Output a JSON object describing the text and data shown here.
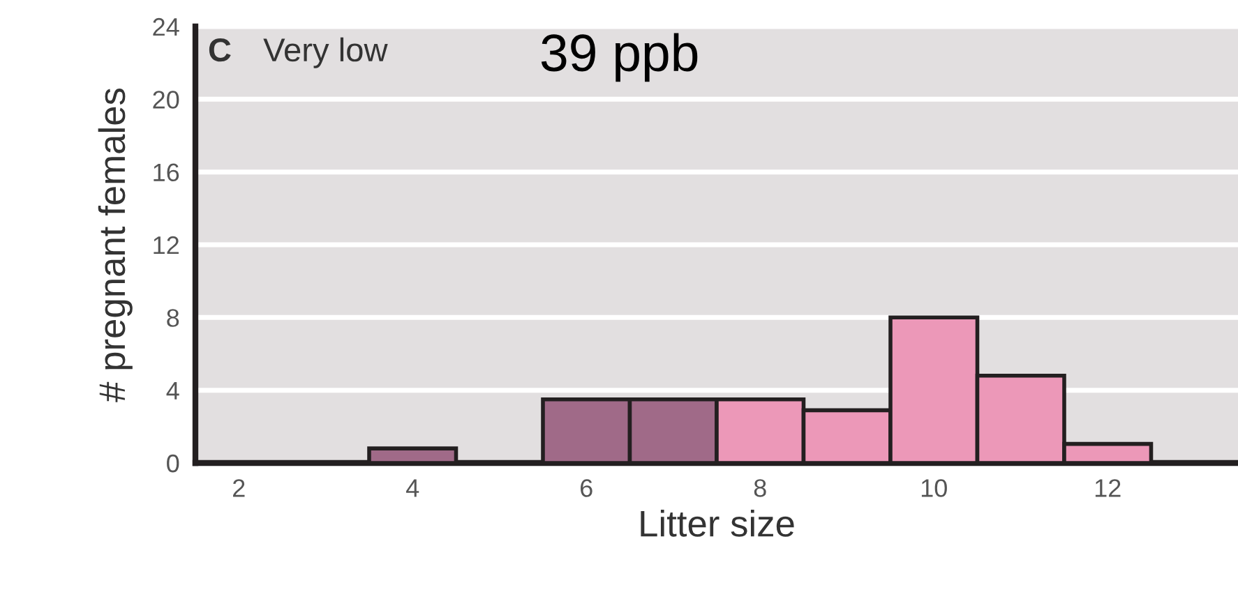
{
  "chart_data": {
    "type": "histogram",
    "xlabel": "Litter size",
    "ylabel": "# pregnant females",
    "bins": [
      3.5,
      4.5,
      5.5,
      6.5,
      7.5,
      8.5,
      9.5,
      10.5,
      11.5,
      12.5
    ],
    "values": [
      0.8,
      null,
      3.5,
      3.5,
      3.5,
      2.9,
      8,
      4.8,
      1.05
    ],
    "colors": [
      "#a06a88",
      "#a06a88",
      "#a06a88",
      "#a06a88",
      "#ec98b8",
      "#ec98b8",
      "#ec98b8",
      "#ec98b8",
      "#ec98b8"
    ],
    "xlim": [
      1.5,
      13.5
    ],
    "xticks": [
      2,
      4,
      6,
      8,
      10,
      12
    ],
    "ylim": [
      0,
      24
    ],
    "yticks": [
      0,
      4,
      8,
      12,
      16,
      20,
      24
    ],
    "grid": "y",
    "annotations": [
      "C",
      "Very low",
      "39 ppb"
    ]
  }
}
